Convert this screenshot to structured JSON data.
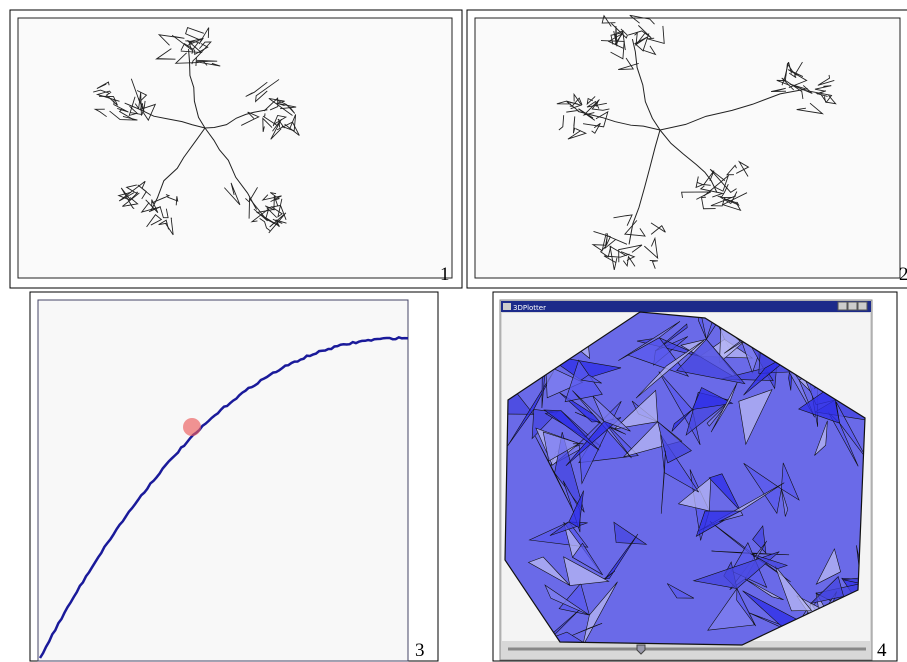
{
  "panels": [
    {
      "label": "1"
    },
    {
      "label": "2"
    },
    {
      "label": "3"
    },
    {
      "label": "4",
      "window_title": "3DPlotter"
    }
  ]
}
